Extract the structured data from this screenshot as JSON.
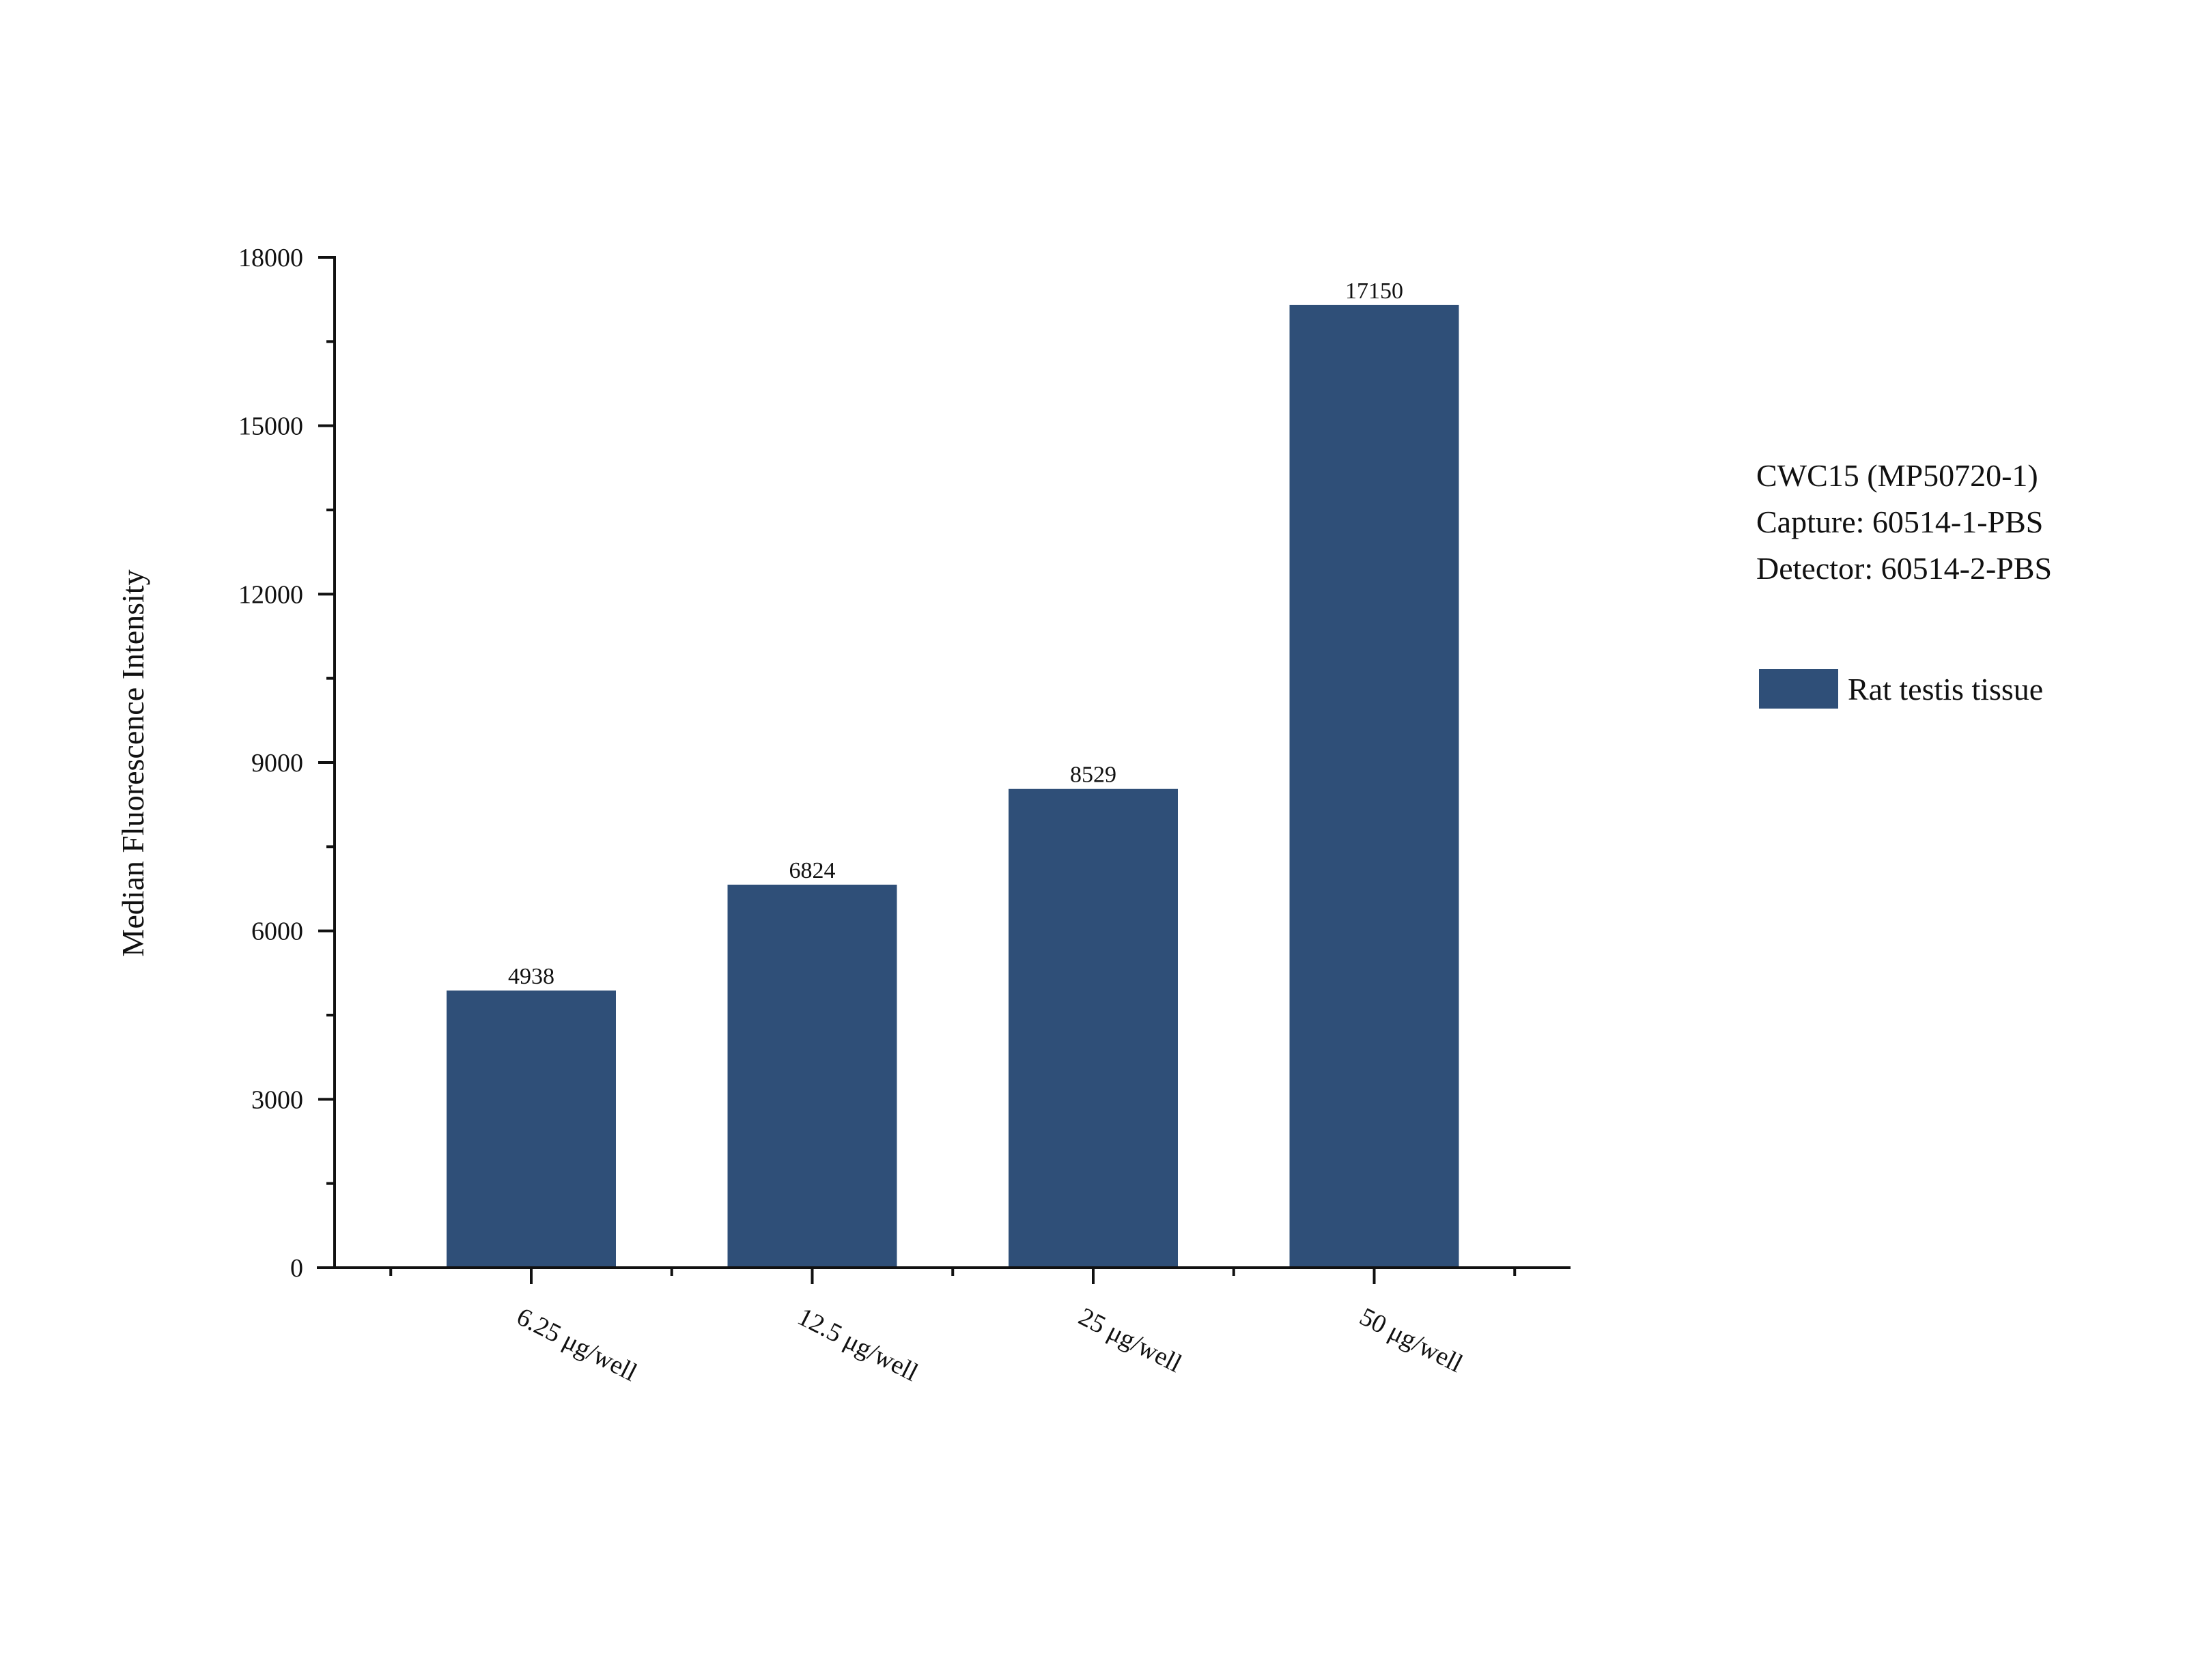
{
  "chart_data": {
    "type": "bar",
    "categories": [
      "6.25 μg/well",
      "12.5 μg/well",
      "25 μg/well",
      "50 μg/well"
    ],
    "series": [
      {
        "name": "Rat testis tissue",
        "values": [
          4938,
          6824,
          8529,
          17150
        ],
        "color": "#2f4f78"
      }
    ],
    "data_labels": [
      "4938",
      "6824",
      "8529",
      "17150"
    ],
    "title": "",
    "xlabel": "",
    "ylabel": "Median Fluorescence Intensity",
    "ylim": [
      0,
      18000
    ],
    "y_ticks": [
      0,
      3000,
      6000,
      9000,
      12000,
      15000,
      18000
    ],
    "y_tick_labels": [
      "0",
      "3000",
      "6000",
      "9000",
      "12000",
      "15000",
      "18000"
    ],
    "grid": false,
    "legend_position": "right",
    "annotation_lines": [
      "CWC15 (MP50720-1)",
      "Capture: 60514-1-PBS",
      "Detector: 60514-2-PBS"
    ]
  }
}
